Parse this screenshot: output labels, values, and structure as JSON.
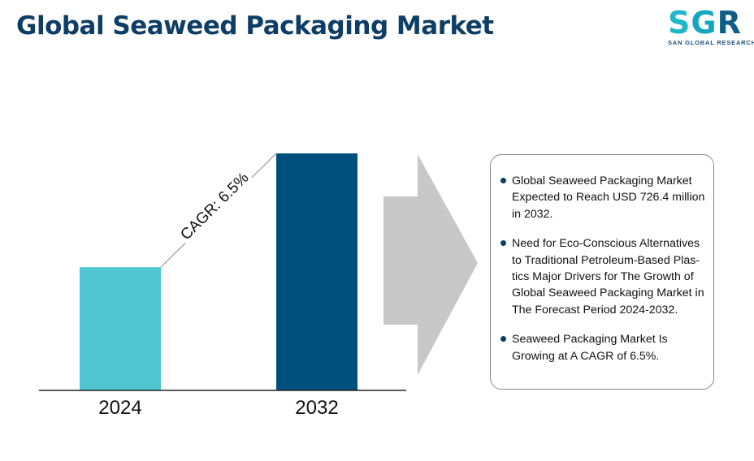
{
  "header": {
    "title": "Global Seaweed Packaging Market"
  },
  "logo": {
    "mark": "SGR",
    "subtitle": "SAN GLOBAL RESEARCH",
    "colors": [
      "#20b8c8",
      "#15a5c0",
      "#0d5f8a"
    ]
  },
  "chart_data": {
    "type": "bar",
    "categories": [
      "2024",
      "2032"
    ],
    "values": [
      0.52,
      1.0
    ],
    "value_units": "relative bar height (no axis printed)",
    "colors": [
      "#4fc6d1",
      "#00507d"
    ],
    "annotation": "CAGR: 6.5%",
    "grid": false,
    "legend": "none"
  },
  "info": {
    "items": [
      {
        "text": "Global Seaweed Packaging Market Expected to Reach USD 726.4 million in 2032."
      },
      {
        "text": "Need for Eco-Conscious Alternatives to Traditional Petroleum-Based Plas-tics Major Drivers for The Growth of Global Seaweed Packaging Market in The Forecast Period 2024-2032."
      },
      {
        "text": "Seaweed Packaging Market Is Growing at A CAGR of 6.5%."
      }
    ]
  },
  "colors": {
    "title": "#0e3d66",
    "arrow": "#c8c8c8",
    "bullet": "#0e3d66"
  }
}
